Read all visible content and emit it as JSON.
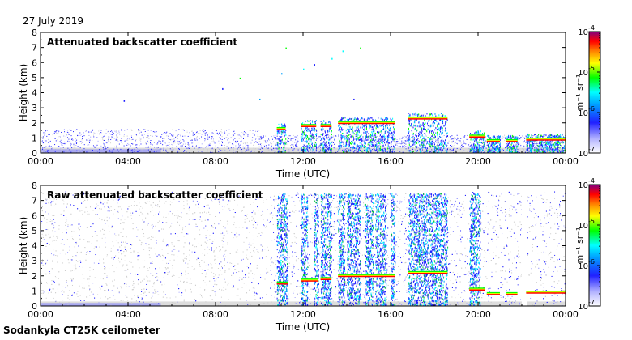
{
  "date": "27 July 2019",
  "site": "Sodankyla CT25K ceilometer",
  "colorscale": {
    "unit_label": "m⁻¹ sr⁻¹",
    "ticks": [
      {
        "label": "10",
        "exp": "-4",
        "log": -4
      },
      {
        "label": "10",
        "exp": "-5",
        "log": -5
      },
      {
        "label": "10",
        "exp": "-6",
        "log": -6
      },
      {
        "label": "10",
        "exp": "-7",
        "log": -7
      }
    ],
    "range_log": [
      -7,
      -4
    ],
    "colors": [
      "#ffffff",
      "#a0a0ff",
      "#0000ff",
      "#00ffff",
      "#00ff00",
      "#ffff00",
      "#ff8000",
      "#ff0000",
      "#800080"
    ]
  },
  "chart_data": [
    {
      "type": "heatmap",
      "title": "Attenuated backscatter coefficient",
      "xlabel": "Time (UTC)",
      "ylabel": "Height (km)",
      "xlim": [
        0,
        24
      ],
      "ylim": [
        0,
        8
      ],
      "xticks": [
        "00:00",
        "04:00",
        "08:00",
        "12:00",
        "16:00",
        "20:00",
        "00:00"
      ],
      "yticks": [
        "0",
        "1",
        "2",
        "3",
        "4",
        "5",
        "6",
        "7",
        "8"
      ],
      "cloud_layer": [
        {
          "start": 10.8,
          "end": 11.2,
          "height_km": 1.6
        },
        {
          "start": 11.9,
          "end": 12.6,
          "height_km": 1.8
        },
        {
          "start": 12.8,
          "end": 13.3,
          "height_km": 1.8
        },
        {
          "start": 13.6,
          "end": 16.2,
          "height_km": 2.0
        },
        {
          "start": 16.8,
          "end": 18.6,
          "height_km": 2.3
        },
        {
          "start": 19.6,
          "end": 20.3,
          "height_km": 1.1
        },
        {
          "start": 20.4,
          "end": 21.0,
          "height_km": 0.8
        },
        {
          "start": 21.3,
          "end": 21.8,
          "height_km": 0.8
        },
        {
          "start": 22.2,
          "end": 24.0,
          "height_km": 0.9
        }
      ]
    },
    {
      "type": "heatmap",
      "title": "Raw attenuated backscatter coefficient",
      "xlabel": "Time (UTC)",
      "ylabel": "Height (km)",
      "xlim": [
        0,
        24
      ],
      "ylim": [
        0,
        8
      ],
      "xticks": [
        "00:00",
        "04:00",
        "08:00",
        "12:00",
        "16:00",
        "20:00",
        "00:00"
      ],
      "yticks": [
        "0",
        "1",
        "2",
        "3",
        "4",
        "5",
        "6",
        "7",
        "8"
      ],
      "precip_columns": [
        {
          "start": 10.8,
          "end": 11.3
        },
        {
          "start": 11.9,
          "end": 12.2
        },
        {
          "start": 12.5,
          "end": 12.7
        },
        {
          "start": 12.8,
          "end": 13.3
        },
        {
          "start": 13.6,
          "end": 13.9
        },
        {
          "start": 14.0,
          "end": 14.6
        },
        {
          "start": 14.8,
          "end": 15.2
        },
        {
          "start": 15.3,
          "end": 15.8
        },
        {
          "start": 16.0,
          "end": 16.2
        },
        {
          "start": 16.8,
          "end": 18.6
        },
        {
          "start": 19.6,
          "end": 20.1
        }
      ],
      "cloud_layer": [
        {
          "start": 10.8,
          "end": 11.3,
          "height_km": 1.5
        },
        {
          "start": 11.9,
          "end": 12.7,
          "height_km": 1.7
        },
        {
          "start": 12.8,
          "end": 13.3,
          "height_km": 1.8
        },
        {
          "start": 13.6,
          "end": 16.2,
          "height_km": 2.0
        },
        {
          "start": 16.8,
          "end": 18.6,
          "height_km": 2.2
        },
        {
          "start": 19.6,
          "end": 20.3,
          "height_km": 1.1
        },
        {
          "start": 20.4,
          "end": 21.0,
          "height_km": 0.8
        },
        {
          "start": 21.3,
          "end": 21.8,
          "height_km": 0.8
        },
        {
          "start": 22.2,
          "end": 24.0,
          "height_km": 0.9
        }
      ],
      "gaps": [
        {
          "start": 22.0,
          "end": 22.25
        }
      ]
    }
  ]
}
